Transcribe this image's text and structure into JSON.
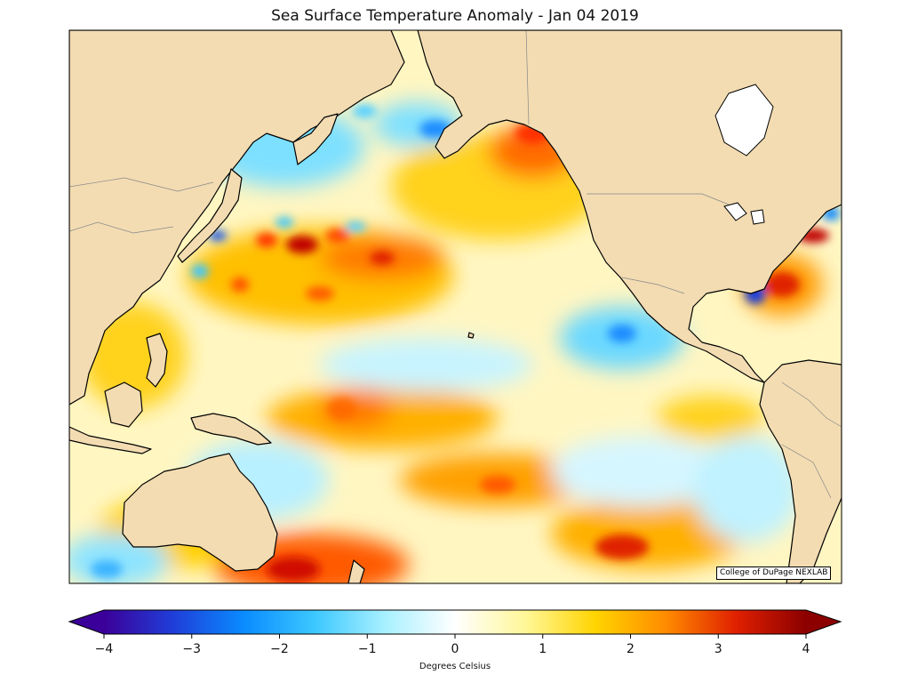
{
  "title": "Sea Surface Temperature Anomaly - Jan 04 2019",
  "credit": "College of DuPage NEXLAB",
  "colorbar": {
    "label": "Degrees Celsius",
    "min": -4,
    "max": 4,
    "extend": "both",
    "ticks": [
      "−4",
      "−3",
      "−2",
      "−1",
      "0",
      "1",
      "2",
      "3",
      "4"
    ],
    "colors": [
      "#3b0099",
      "#1f3fd9",
      "#0a8cff",
      "#3cc8ff",
      "#a8f0ff",
      "#ffffff",
      "#fff799",
      "#ffd400",
      "#ff8c00",
      "#e02000",
      "#8c0000"
    ]
  },
  "map": {
    "region": "North Pacific Ocean",
    "land_color": "#f3dcb2",
    "ocean_base_color": "#fff6cc"
  }
}
